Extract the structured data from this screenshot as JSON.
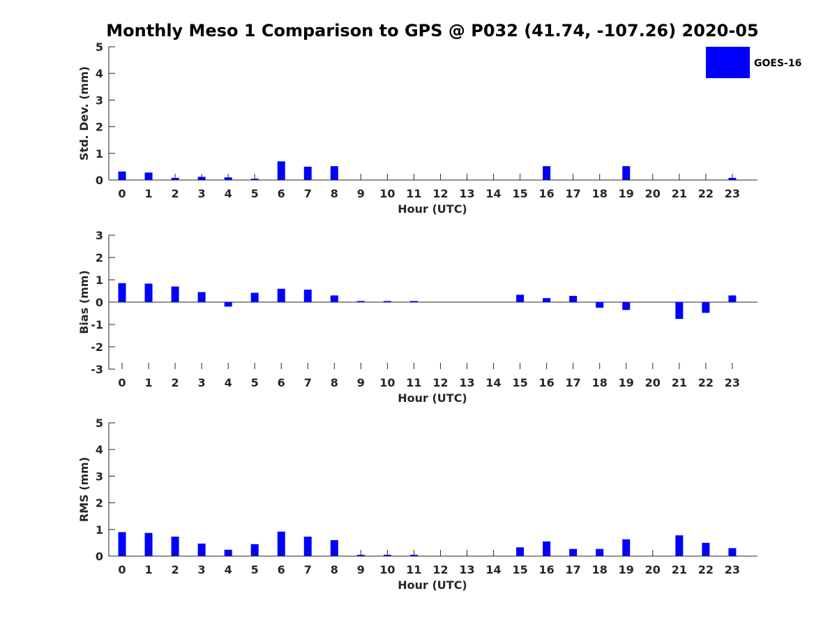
{
  "title": "Monthly Meso 1 Comparison to GPS @ P032 (41.74, -107.26) 2020-05",
  "legend": {
    "label": "GOES-16",
    "color": "#0000ff"
  },
  "chart_data": [
    {
      "type": "bar",
      "name": "std-dev",
      "xlabel": "Hour (UTC)",
      "ylabel": "Std. Dev. (mm)",
      "ylim": [
        0,
        5
      ],
      "yticks": [
        0,
        1,
        2,
        3,
        4,
        5
      ],
      "categories": [
        "0",
        "1",
        "2",
        "3",
        "4",
        "5",
        "6",
        "7",
        "8",
        "9",
        "10",
        "11",
        "12",
        "13",
        "14",
        "15",
        "16",
        "17",
        "18",
        "19",
        "20",
        "21",
        "22",
        "23"
      ],
      "series": [
        {
          "name": "GOES-16",
          "color": "#0000ff",
          "values": [
            0.32,
            0.28,
            0.08,
            0.12,
            0.1,
            0.05,
            0.7,
            0.5,
            0.52,
            null,
            null,
            null,
            null,
            null,
            null,
            null,
            0.52,
            null,
            null,
            0.52,
            null,
            null,
            null,
            0.08
          ]
        }
      ]
    },
    {
      "type": "bar",
      "name": "bias",
      "xlabel": "Hour (UTC)",
      "ylabel": "Bias (mm)",
      "ylim": [
        -3,
        3
      ],
      "yticks": [
        -3,
        -2,
        -1,
        0,
        1,
        2,
        3
      ],
      "categories": [
        "0",
        "1",
        "2",
        "3",
        "4",
        "5",
        "6",
        "7",
        "8",
        "9",
        "10",
        "11",
        "12",
        "13",
        "14",
        "15",
        "16",
        "17",
        "18",
        "19",
        "20",
        "21",
        "22",
        "23"
      ],
      "series": [
        {
          "name": "GOES-16",
          "color": "#0000ff",
          "values": [
            0.85,
            0.83,
            0.7,
            0.45,
            -0.2,
            0.42,
            0.6,
            0.56,
            0.3,
            0.05,
            0.05,
            0.05,
            null,
            null,
            null,
            0.33,
            0.18,
            0.28,
            -0.25,
            -0.35,
            null,
            -0.75,
            -0.48,
            0.3
          ]
        }
      ]
    },
    {
      "type": "bar",
      "name": "rms",
      "xlabel": "Hour (UTC)",
      "ylabel": "RMS (mm)",
      "ylim": [
        0,
        5
      ],
      "yticks": [
        0,
        1,
        2,
        3,
        4,
        5
      ],
      "categories": [
        "0",
        "1",
        "2",
        "3",
        "4",
        "5",
        "6",
        "7",
        "8",
        "9",
        "10",
        "11",
        "12",
        "13",
        "14",
        "15",
        "16",
        "17",
        "18",
        "19",
        "20",
        "21",
        "22",
        "23"
      ],
      "series": [
        {
          "name": "GOES-16",
          "color": "#0000ff",
          "values": [
            0.9,
            0.87,
            0.73,
            0.47,
            0.24,
            0.45,
            0.92,
            0.73,
            0.6,
            0.05,
            0.05,
            0.05,
            null,
            null,
            null,
            0.33,
            0.55,
            0.27,
            0.27,
            0.63,
            null,
            0.78,
            0.5,
            0.3
          ]
        }
      ]
    }
  ]
}
